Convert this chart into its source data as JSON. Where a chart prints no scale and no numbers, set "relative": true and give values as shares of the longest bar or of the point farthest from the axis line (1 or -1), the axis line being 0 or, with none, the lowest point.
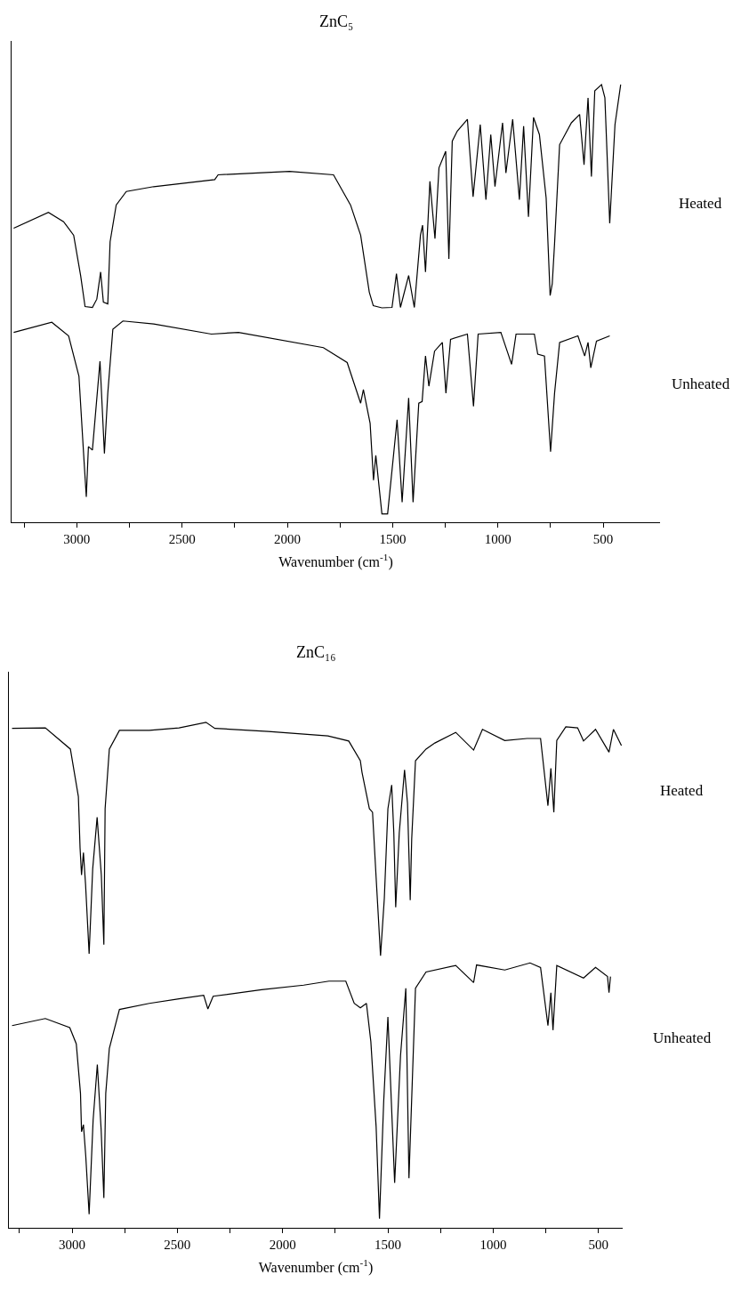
{
  "chart_data": [
    {
      "type": "line",
      "title": "ZnC₅",
      "xlabel": "Wavenumber (cm$^{-1}$)",
      "relative": true,
      "xlim": [
        3310,
        230
      ],
      "xticks": [
        {
          "value": 3250,
          "label": null
        },
        3000,
        {
          "value": 2750,
          "label": null
        },
        2500,
        {
          "value": 2250,
          "label": null
        },
        2000,
        {
          "value": 1750,
          "label": null
        },
        1500,
        {
          "value": 1250,
          "label": null
        },
        1000,
        {
          "value": 750,
          "label": null
        },
        500
      ],
      "series": [
        {
          "name": "Heated",
          "color": "#000000",
          "x": [
            3300,
            3135,
            3063,
            3015,
            2982,
            2961,
            2926,
            2905,
            2887,
            2874,
            2853,
            2842,
            2813,
            2765,
            2635,
            2345,
            2329,
            1990,
            1781,
            1700,
            1652,
            1611,
            1592,
            1551,
            1503,
            1482,
            1463,
            1424,
            1397,
            1368,
            1358,
            1344,
            1323,
            1299,
            1280,
            1248,
            1233,
            1217,
            1193,
            1145,
            1118,
            1084,
            1057,
            1034,
            1014,
            978,
            962,
            930,
            898,
            878,
            855,
            831,
            803,
            771,
            752,
            742,
            731,
            707,
            651,
            612,
            591,
            572,
            556,
            540,
            508,
            492,
            469,
            444,
            417
          ],
          "values": [
            0.672,
            0.708,
            0.687,
            0.656,
            0.564,
            0.493,
            0.491,
            0.51,
            0.572,
            0.503,
            0.499,
            0.641,
            0.725,
            0.756,
            0.767,
            0.783,
            0.794,
            0.802,
            0.794,
            0.725,
            0.656,
            0.526,
            0.495,
            0.49,
            0.491,
            0.568,
            0.491,
            0.564,
            0.491,
            0.656,
            0.679,
            0.572,
            0.779,
            0.648,
            0.81,
            0.848,
            0.602,
            0.871,
            0.894,
            0.921,
            0.744,
            0.909,
            0.737,
            0.886,
            0.767,
            0.913,
            0.798,
            0.921,
            0.737,
            0.905,
            0.698,
            0.925,
            0.886,
            0.741,
            0.518,
            0.545,
            0.637,
            0.863,
            0.913,
            0.932,
            0.817,
            0.97,
            0.79,
            0.986,
            1.0,
            0.97,
            0.683,
            0.909,
            1.0
          ]
        },
        {
          "name": "Unheated",
          "color": "#000000",
          "x": [
            3300,
            3119,
            3039,
            2990,
            2966,
            2955,
            2945,
            2926,
            2890,
            2869,
            2853,
            2829,
            2781,
            2635,
            2361,
            2232,
            1829,
            1716,
            1652,
            1639,
            1607,
            1591,
            1580,
            1551,
            1524,
            1479,
            1455,
            1424,
            1403,
            1376,
            1360,
            1344,
            1328,
            1301,
            1264,
            1247,
            1225,
            1145,
            1116,
            1094,
            986,
            954,
            935,
            914,
            827,
            811,
            779,
            750,
            731,
            707,
            620,
            588,
            572,
            559,
            532,
            469
          ],
          "values": [
            0.434,
            0.457,
            0.426,
            0.334,
            0.142,
            0.058,
            0.173,
            0.165,
            0.368,
            0.157,
            0.295,
            0.441,
            0.46,
            0.453,
            0.43,
            0.434,
            0.399,
            0.365,
            0.272,
            0.303,
            0.226,
            0.096,
            0.153,
            0.019,
            0.019,
            0.234,
            0.046,
            0.284,
            0.046,
            0.272,
            0.276,
            0.38,
            0.311,
            0.391,
            0.411,
            0.295,
            0.418,
            0.43,
            0.265,
            0.43,
            0.434,
            0.388,
            0.361,
            0.43,
            0.43,
            0.384,
            0.38,
            0.161,
            0.295,
            0.411,
            0.426,
            0.38,
            0.411,
            0.353,
            0.414,
            0.426
          ]
        }
      ]
    },
    {
      "type": "line",
      "title": "ZnC₁₆",
      "xlabel": "Wavenumber (cm$^{-1}$)",
      "relative": true,
      "xlim": [
        3300,
        385
      ],
      "xticks": [
        {
          "value": 3250,
          "label": null
        },
        3000,
        {
          "value": 2750,
          "label": null
        },
        2500,
        {
          "value": 2250,
          "label": null
        },
        2000,
        {
          "value": 1750,
          "label": null
        },
        1500,
        {
          "value": 1250,
          "label": null
        },
        1000,
        {
          "value": 750,
          "label": null
        },
        500
      ],
      "series": [
        {
          "name": "Heated",
          "color": "#000000",
          "x": [
            3285,
            3127,
            3008,
            2970,
            2962,
            2955,
            2946,
            2936,
            2919,
            2902,
            2881,
            2861,
            2849,
            2843,
            2823,
            2775,
            2633,
            2492,
            2364,
            2322,
            2068,
            1785,
            1686,
            1631,
            1623,
            1588,
            1573,
            1556,
            1535,
            1517,
            1500,
            1482,
            1472,
            1463,
            1446,
            1421,
            1407,
            1394,
            1387,
            1369,
            1319,
            1277,
            1178,
            1093,
            1051,
            945,
            839,
            775,
            740,
            726,
            712,
            698,
            655,
            599,
            571,
            514,
            450,
            429,
            391
          ],
          "values": [
            0.988,
            0.989,
            0.947,
            0.853,
            0.751,
            0.698,
            0.742,
            0.68,
            0.542,
            0.71,
            0.812,
            0.698,
            0.56,
            0.829,
            0.947,
            0.984,
            0.984,
            0.989,
            1.0,
            0.988,
            0.982,
            0.973,
            0.963,
            0.924,
            0.901,
            0.829,
            0.822,
            0.693,
            0.538,
            0.652,
            0.829,
            0.876,
            0.782,
            0.634,
            0.782,
            0.906,
            0.84,
            0.648,
            0.769,
            0.924,
            0.947,
            0.959,
            0.98,
            0.945,
            0.986,
            0.964,
            0.968,
            0.968,
            0.835,
            0.909,
            0.822,
            0.964,
            0.991,
            0.989,
            0.963,
            0.986,
            0.941,
            0.986,
            0.954
          ]
        },
        {
          "name": "Unheated",
          "color": "#000000",
          "x": [
            3285,
            3127,
            3011,
            2980,
            2960,
            2955,
            2946,
            2935,
            2919,
            2900,
            2880,
            2862,
            2849,
            2840,
            2823,
            2775,
            2633,
            2492,
            2375,
            2355,
            2330,
            2100,
            1900,
            1780,
            1700,
            1660,
            1631,
            1602,
            1581,
            1556,
            1540,
            1520,
            1500,
            1468,
            1440,
            1415,
            1400,
            1369,
            1319,
            1178,
            1093,
            1079,
            945,
            825,
            775,
            740,
            726,
            716,
            698,
            571,
            514,
            457,
            450,
            443
          ],
          "values": [
            0.4,
            0.414,
            0.396,
            0.364,
            0.266,
            0.19,
            0.204,
            0.142,
            0.027,
            0.213,
            0.323,
            0.195,
            0.059,
            0.266,
            0.355,
            0.432,
            0.444,
            0.453,
            0.46,
            0.433,
            0.458,
            0.471,
            0.48,
            0.488,
            0.488,
            0.444,
            0.435,
            0.444,
            0.368,
            0.2,
            0.018,
            0.25,
            0.417,
            0.089,
            0.341,
            0.474,
            0.098,
            0.474,
            0.506,
            0.519,
            0.485,
            0.52,
            0.51,
            0.524,
            0.515,
            0.4,
            0.465,
            0.391,
            0.519,
            0.494,
            0.515,
            0.497,
            0.465,
            0.497
          ]
        }
      ]
    }
  ]
}
